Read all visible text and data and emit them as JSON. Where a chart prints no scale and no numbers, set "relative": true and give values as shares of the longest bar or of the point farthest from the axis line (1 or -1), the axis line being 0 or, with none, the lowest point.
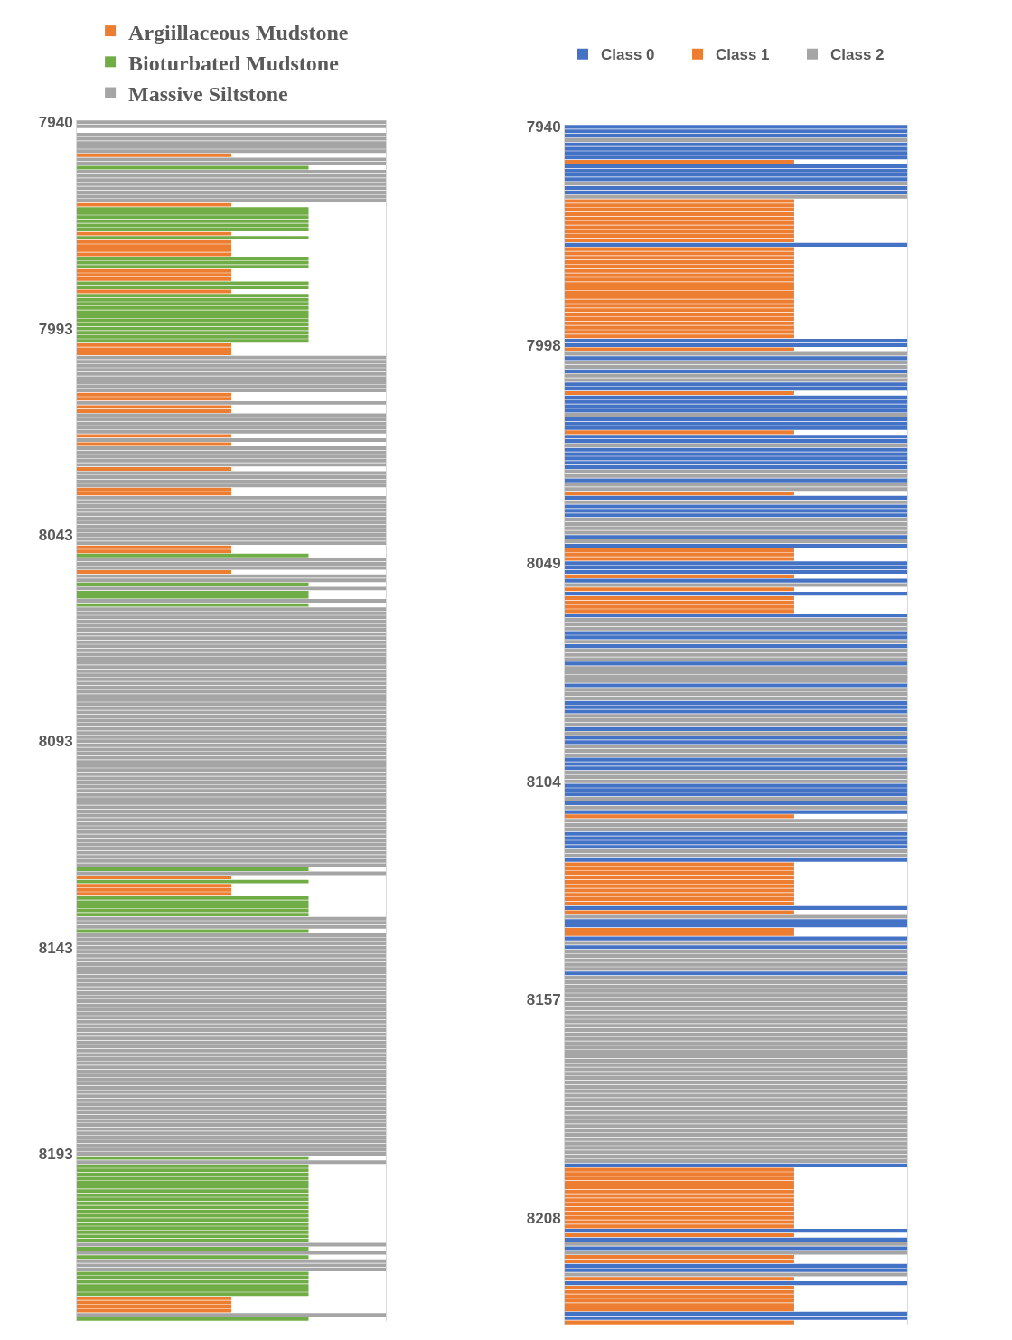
{
  "chart_data": [
    {
      "type": "bar",
      "orientation": "horizontal",
      "relative": true,
      "legend": "top left",
      "categories": [
        "7940",
        null,
        null,
        null,
        null,
        null,
        null,
        null,
        null,
        null,
        null,
        null,
        null,
        null,
        null,
        null,
        null,
        null,
        null,
        null,
        null,
        null,
        null,
        null,
        null,
        null,
        null,
        null,
        null,
        null,
        null,
        null,
        null,
        null,
        null,
        null,
        null,
        null,
        null,
        null,
        null,
        null,
        null,
        null,
        null,
        null,
        null,
        null,
        null,
        null,
        "7993",
        null,
        null,
        null,
        null,
        null,
        null,
        null,
        null,
        null,
        null,
        null,
        null,
        null,
        null,
        null,
        null,
        null,
        null,
        null,
        null,
        null,
        null,
        null,
        null,
        null,
        null,
        null,
        null,
        null,
        null,
        null,
        null,
        null,
        null,
        null,
        null,
        null,
        null,
        null,
        null,
        null,
        null,
        null,
        null,
        null,
        null,
        null,
        null,
        null,
        "8043",
        null,
        null,
        null,
        null,
        null,
        null,
        null,
        null,
        null,
        null,
        null,
        null,
        null,
        null,
        null,
        null,
        null,
        null,
        null,
        null,
        null,
        null,
        null,
        null,
        null,
        null,
        null,
        null,
        null,
        null,
        null,
        null,
        null,
        null,
        null,
        null,
        null,
        null,
        null,
        null,
        null,
        null,
        null,
        null,
        null,
        null,
        null,
        null,
        null,
        "8093",
        null,
        null,
        null,
        null,
        null,
        null,
        null,
        null,
        null,
        null,
        null,
        null,
        null,
        null,
        null,
        null,
        null,
        null,
        null,
        null,
        null,
        null,
        null,
        null,
        null,
        null,
        null,
        null,
        null,
        null,
        null,
        null,
        null,
        null,
        null,
        null,
        null,
        null,
        null,
        null,
        null,
        null,
        null,
        null,
        null,
        null,
        null,
        null,
        null,
        "8143",
        null,
        null,
        null,
        null,
        null,
        null,
        null,
        null,
        null,
        null,
        null,
        null,
        null,
        null,
        null,
        null,
        null,
        null,
        null,
        null,
        null,
        null,
        null,
        null,
        null,
        null,
        null,
        null,
        null,
        null,
        null,
        null,
        null,
        null,
        null,
        null,
        null,
        null,
        null,
        null,
        null,
        null,
        null,
        null,
        null,
        null,
        null,
        null,
        null,
        "8193",
        null,
        null,
        null,
        null,
        null,
        null,
        null,
        null,
        null,
        null,
        null,
        null,
        null,
        null,
        null,
        null,
        null,
        null,
        null,
        null,
        null,
        null,
        null,
        null,
        null,
        null,
        null,
        null,
        null,
        null,
        null,
        null,
        null,
        null,
        null,
        null,
        null,
        null,
        null,
        null
      ],
      "series": [
        {
          "name": "Argiillaceous Mudstone",
          "color": "#ed7d31",
          "values": [
            null,
            null,
            null,
            null,
            null,
            null,
            null,
            null,
            0.5,
            null,
            null,
            null,
            null,
            null,
            null,
            null,
            null,
            null,
            null,
            null,
            0.5,
            null,
            null,
            null,
            null,
            null,
            null,
            0.5,
            null,
            0.5,
            0.5,
            0.5,
            0.5,
            null,
            null,
            null,
            0.5,
            0.5,
            0.5,
            null,
            null,
            0.5,
            null,
            null,
            null,
            null,
            null,
            null,
            null,
            null,
            null,
            null,
            null,
            null,
            0.5,
            0.5,
            0.5,
            null,
            null,
            null,
            null,
            null,
            null,
            null,
            null,
            null,
            0.5,
            0.5,
            null,
            0.5,
            0.5,
            null,
            null,
            null,
            null,
            null,
            0.5,
            null,
            0.5,
            null,
            null,
            null,
            null,
            null,
            0.5,
            null,
            null,
            null,
            null,
            0.5,
            0.5,
            null,
            null,
            null,
            null,
            null,
            null,
            null,
            null,
            null,
            null,
            null,
            null,
            0.5,
            0.5,
            null,
            null,
            null,
            null,
            0.5,
            null,
            null,
            null,
            null,
            null,
            null,
            null,
            null,
            null,
            null,
            null,
            null,
            null,
            null,
            null,
            null,
            null,
            null,
            null,
            null,
            null,
            null,
            null,
            null,
            null,
            null,
            null,
            null,
            null,
            null,
            null,
            null,
            null,
            null,
            null,
            null,
            null,
            null,
            null,
            null,
            null,
            null,
            null,
            null,
            null,
            null,
            null,
            null,
            null,
            null,
            null,
            null,
            null,
            null,
            null,
            null,
            null,
            null,
            null,
            null,
            null,
            null,
            null,
            null,
            null,
            null,
            null,
            null,
            null,
            null,
            null,
            null,
            null,
            0.5,
            null,
            0.5,
            0.5,
            0.5,
            null,
            null,
            null,
            null,
            null,
            null,
            null,
            null,
            null,
            null,
            null,
            null,
            null,
            null,
            null,
            null,
            null,
            null,
            null,
            null,
            null,
            null,
            null,
            null,
            null,
            null,
            null,
            null,
            null,
            null,
            null,
            null,
            null,
            null,
            null,
            null,
            null,
            null,
            null,
            null,
            null,
            null,
            null,
            null,
            null,
            null,
            null,
            null,
            null,
            null,
            null,
            null,
            null,
            null,
            null,
            null,
            null,
            null,
            null,
            null,
            null,
            null,
            null,
            null,
            null,
            null,
            null,
            null,
            null,
            null,
            null,
            null,
            null,
            null,
            null,
            null,
            null,
            null,
            null,
            null,
            null,
            null,
            null,
            null,
            null,
            null,
            null,
            null,
            null,
            null,
            null,
            null,
            null,
            null,
            null,
            null,
            null,
            0.5,
            0.5,
            0.5,
            0.5,
            null,
            null
          ]
        },
        {
          "name": "Bioturbated Mudstone",
          "color": "#70ad47",
          "values": [
            null,
            null,
            null,
            null,
            null,
            null,
            null,
            null,
            null,
            null,
            null,
            0.75,
            null,
            null,
            null,
            null,
            null,
            null,
            null,
            null,
            null,
            0.75,
            0.75,
            0.75,
            0.75,
            0.75,
            0.75,
            null,
            0.75,
            null,
            null,
            null,
            null,
            0.75,
            0.75,
            0.75,
            null,
            null,
            null,
            0.75,
            0.75,
            null,
            0.75,
            0.75,
            0.75,
            0.75,
            0.75,
            0.75,
            0.75,
            0.75,
            0.75,
            0.75,
            0.75,
            0.75,
            null,
            null,
            null,
            null,
            null,
            null,
            null,
            null,
            null,
            null,
            null,
            null,
            null,
            null,
            null,
            null,
            null,
            null,
            null,
            null,
            null,
            null,
            null,
            null,
            null,
            null,
            null,
            null,
            null,
            null,
            null,
            null,
            null,
            null,
            null,
            null,
            null,
            null,
            null,
            null,
            null,
            null,
            null,
            null,
            null,
            null,
            null,
            null,
            null,
            null,
            null,
            0.75,
            null,
            null,
            null,
            null,
            null,
            null,
            0.75,
            null,
            0.75,
            0.75,
            null,
            0.75,
            null,
            null,
            null,
            null,
            null,
            null,
            null,
            null,
            null,
            null,
            null,
            null,
            null,
            null,
            null,
            null,
            null,
            null,
            null,
            null,
            null,
            null,
            null,
            null,
            null,
            null,
            null,
            null,
            null,
            null,
            null,
            null,
            null,
            null,
            null,
            null,
            null,
            null,
            null,
            null,
            null,
            null,
            null,
            null,
            null,
            null,
            null,
            null,
            null,
            null,
            null,
            null,
            null,
            null,
            null,
            null,
            null,
            null,
            null,
            null,
            null,
            null,
            null,
            0.75,
            null,
            null,
            0.75,
            null,
            null,
            null,
            0.75,
            0.75,
            0.75,
            0.75,
            0.75,
            null,
            null,
            null,
            0.75,
            null,
            null,
            null,
            null,
            null,
            null,
            null,
            null,
            null,
            null,
            null,
            null,
            null,
            null,
            null,
            null,
            null,
            null,
            null,
            null,
            null,
            null,
            null,
            null,
            null,
            null,
            null,
            null,
            null,
            null,
            null,
            null,
            null,
            null,
            null,
            null,
            null,
            null,
            null,
            null,
            null,
            null,
            null,
            null,
            null,
            null,
            null,
            null,
            null,
            null,
            null,
            null,
            null,
            null,
            0.75,
            null,
            0.75,
            0.75,
            0.75,
            0.75,
            0.75,
            0.75,
            0.75,
            0.75,
            0.75,
            0.75,
            0.75,
            0.75,
            0.75,
            0.75,
            0.75,
            0.75,
            0.75,
            0.75,
            0.75,
            null,
            0.75,
            null,
            0.75,
            null,
            null,
            null,
            0.75,
            0.75,
            0.75,
            0.75,
            0.75,
            0.75,
            null,
            null,
            null,
            null,
            null,
            0.75
          ]
        },
        {
          "name": "Massive Siltstone",
          "color": "#a5a5a5",
          "values": [
            1,
            1,
            null,
            1,
            1,
            1,
            1,
            1,
            null,
            1,
            1,
            null,
            1,
            1,
            1,
            1,
            1,
            1,
            1,
            1,
            null,
            null,
            null,
            null,
            null,
            null,
            null,
            null,
            null,
            null,
            null,
            null,
            null,
            null,
            null,
            null,
            null,
            null,
            null,
            null,
            null,
            null,
            null,
            null,
            null,
            null,
            null,
            null,
            null,
            null,
            null,
            null,
            null,
            null,
            null,
            null,
            null,
            1,
            1,
            1,
            1,
            1,
            1,
            1,
            1,
            1,
            null,
            null,
            1,
            null,
            null,
            1,
            1,
            1,
            1,
            1,
            null,
            1,
            null,
            1,
            1,
            1,
            1,
            1,
            null,
            1,
            1,
            1,
            1,
            null,
            null,
            1,
            1,
            1,
            1,
            1,
            1,
            1,
            1,
            1,
            1,
            1,
            1,
            null,
            null,
            null,
            1,
            1,
            1,
            null,
            1,
            1,
            null,
            1,
            null,
            null,
            1,
            null,
            1,
            1,
            1,
            1,
            1,
            1,
            1,
            1,
            1,
            1,
            1,
            1,
            1,
            1,
            1,
            1,
            1,
            1,
            1,
            1,
            1,
            1,
            1,
            1,
            1,
            1,
            1,
            1,
            1,
            1,
            1,
            1,
            1,
            1,
            1,
            1,
            1,
            1,
            1,
            1,
            1,
            1,
            1,
            1,
            1,
            1,
            1,
            1,
            1,
            1,
            1,
            1,
            1,
            1,
            1,
            1,
            1,
            1,
            1,
            1,
            1,
            1,
            1,
            null,
            1,
            null,
            null,
            null,
            null,
            null,
            null,
            null,
            null,
            null,
            null,
            1,
            1,
            1,
            null,
            1,
            1,
            1,
            1,
            1,
            1,
            1,
            1,
            1,
            1,
            1,
            1,
            1,
            1,
            1,
            1,
            1,
            1,
            1,
            1,
            1,
            1,
            1,
            1,
            1,
            1,
            1,
            1,
            1,
            1,
            1,
            1,
            1,
            1,
            1,
            1,
            1,
            1,
            1,
            1,
            1,
            1,
            1,
            1,
            1,
            1,
            1,
            1,
            1,
            1,
            1,
            1,
            1,
            1,
            null,
            1,
            null,
            null,
            null,
            null,
            null,
            null,
            null,
            null,
            null,
            null,
            null,
            null,
            null,
            null,
            null,
            null,
            null,
            null,
            null,
            1,
            null,
            1,
            null,
            1,
            1,
            1,
            null,
            null,
            null,
            null,
            null,
            null,
            null,
            null,
            null,
            null,
            1,
            null
          ]
        }
      ]
    },
    {
      "type": "bar",
      "orientation": "horizontal",
      "relative": true,
      "legend": "top",
      "categories": [
        "7940",
        null,
        null,
        null,
        null,
        null,
        null,
        null,
        null,
        null,
        null,
        null,
        null,
        null,
        null,
        null,
        null,
        null,
        null,
        null,
        null,
        null,
        null,
        null,
        null,
        null,
        null,
        null,
        null,
        null,
        null,
        null,
        null,
        null,
        null,
        null,
        null,
        null,
        null,
        null,
        null,
        null,
        null,
        null,
        null,
        null,
        null,
        null,
        null,
        null,
        "7998",
        null,
        null,
        null,
        null,
        null,
        null,
        null,
        null,
        null,
        null,
        null,
        null,
        null,
        null,
        null,
        null,
        null,
        null,
        null,
        null,
        null,
        null,
        null,
        null,
        null,
        null,
        null,
        null,
        null,
        null,
        null,
        null,
        null,
        null,
        null,
        null,
        null,
        null,
        null,
        null,
        null,
        null,
        null,
        null,
        null,
        null,
        null,
        null,
        null,
        "8049",
        null,
        null,
        null,
        null,
        null,
        null,
        null,
        null,
        null,
        null,
        null,
        null,
        null,
        null,
        null,
        null,
        null,
        null,
        null,
        null,
        null,
        null,
        null,
        null,
        null,
        null,
        null,
        null,
        null,
        null,
        null,
        null,
        null,
        null,
        null,
        null,
        null,
        null,
        null,
        null,
        null,
        null,
        null,
        null,
        null,
        null,
        null,
        null,
        null,
        "8104",
        null,
        null,
        null,
        null,
        null,
        null,
        null,
        null,
        null,
        null,
        null,
        null,
        null,
        null,
        null,
        null,
        null,
        null,
        null,
        null,
        null,
        null,
        null,
        null,
        null,
        null,
        null,
        null,
        null,
        null,
        null,
        null,
        null,
        null,
        null,
        null,
        null,
        null,
        null,
        null,
        null,
        null,
        null,
        null,
        null,
        null,
        null,
        null,
        null,
        "8157",
        null,
        null,
        null,
        null,
        null,
        null,
        null,
        null,
        null,
        null,
        null,
        null,
        null,
        null,
        null,
        null,
        null,
        null,
        null,
        null,
        null,
        null,
        null,
        null,
        null,
        null,
        null,
        null,
        null,
        null,
        null,
        null,
        null,
        null,
        null,
        null,
        null,
        null,
        null,
        null,
        null,
        null,
        null,
        null,
        null,
        null,
        null,
        null,
        null,
        "8208",
        null,
        null,
        null,
        null,
        null,
        null,
        null,
        null,
        null,
        null,
        null,
        null,
        null,
        null,
        null,
        null,
        null,
        null,
        null,
        null,
        null,
        null,
        null,
        null
      ],
      "series": [
        {
          "name": "Class 0",
          "color": "#4472c4",
          "values": [
            1,
            1,
            1,
            null,
            1,
            1,
            1,
            1,
            null,
            1,
            1,
            1,
            1,
            null,
            1,
            1,
            null,
            null,
            null,
            null,
            null,
            null,
            null,
            null,
            null,
            null,
            null,
            1,
            null,
            null,
            null,
            null,
            null,
            null,
            null,
            null,
            null,
            null,
            null,
            null,
            null,
            null,
            null,
            null,
            null,
            null,
            null,
            null,
            null,
            1,
            1,
            null,
            null,
            1,
            null,
            null,
            1,
            null,
            null,
            1,
            1,
            null,
            1,
            1,
            1,
            1,
            null,
            1,
            1,
            1,
            null,
            1,
            1,
            null,
            1,
            1,
            1,
            1,
            1,
            null,
            null,
            1,
            null,
            null,
            null,
            1,
            null,
            1,
            1,
            1,
            null,
            null,
            null,
            null,
            1,
            null,
            1,
            null,
            null,
            null,
            1,
            1,
            1,
            null,
            1,
            null,
            null,
            1,
            null,
            null,
            null,
            null,
            1,
            null,
            null,
            null,
            1,
            1,
            null,
            1,
            null,
            null,
            null,
            1,
            null,
            null,
            null,
            null,
            1,
            null,
            null,
            null,
            1,
            1,
            1,
            null,
            null,
            null,
            1,
            null,
            1,
            1,
            null,
            null,
            null,
            1,
            1,
            1,
            null,
            null,
            null,
            1,
            1,
            1,
            null,
            1,
            null,
            1,
            null,
            null,
            null,
            null,
            1,
            1,
            1,
            1,
            null,
            null,
            1,
            null,
            null,
            null,
            null,
            null,
            null,
            null,
            null,
            null,
            null,
            1,
            null,
            null,
            1,
            1,
            null,
            null,
            1,
            null,
            1,
            null,
            null,
            null,
            null,
            null,
            1,
            null,
            null,
            null,
            null,
            null,
            null,
            null,
            null,
            null,
            null,
            null,
            null,
            null,
            null,
            null,
            null,
            null,
            null,
            null,
            null,
            null,
            null,
            null,
            null,
            null,
            null,
            null,
            null,
            null,
            null,
            null,
            null,
            null,
            null,
            null,
            null,
            null,
            null,
            null,
            null,
            null,
            null,
            null,
            1,
            null,
            null,
            null,
            null,
            null,
            null,
            null,
            null,
            null,
            null,
            null,
            null,
            null,
            null,
            1,
            null,
            1,
            null,
            1,
            null,
            null,
            null,
            1,
            1,
            null,
            null,
            1,
            null,
            null,
            null,
            null,
            null,
            null,
            1,
            1,
            null
          ]
        },
        {
          "name": "Class 1",
          "color": "#ed7d31",
          "values": [
            null,
            null,
            null,
            null,
            null,
            null,
            null,
            null,
            0.67,
            null,
            null,
            null,
            null,
            null,
            null,
            null,
            null,
            0.67,
            0.67,
            0.67,
            0.67,
            0.67,
            0.67,
            0.67,
            0.67,
            0.67,
            0.67,
            null,
            0.67,
            0.67,
            0.67,
            0.67,
            0.67,
            0.67,
            0.67,
            0.67,
            0.67,
            0.67,
            0.67,
            0.67,
            0.67,
            0.67,
            0.67,
            0.67,
            0.67,
            0.67,
            0.67,
            0.67,
            0.67,
            null,
            null,
            0.67,
            null,
            null,
            null,
            null,
            null,
            null,
            null,
            null,
            null,
            0.67,
            null,
            null,
            null,
            null,
            null,
            null,
            null,
            null,
            0.67,
            null,
            null,
            null,
            null,
            null,
            null,
            null,
            null,
            null,
            null,
            null,
            null,
            null,
            0.67,
            null,
            null,
            null,
            null,
            null,
            null,
            null,
            null,
            null,
            null,
            null,
            null,
            0.67,
            0.67,
            0.67,
            null,
            null,
            null,
            0.67,
            null,
            null,
            0.67,
            null,
            0.67,
            0.67,
            0.67,
            0.67,
            null,
            null,
            null,
            null,
            null,
            null,
            null,
            null,
            null,
            null,
            null,
            null,
            null,
            null,
            null,
            null,
            null,
            null,
            null,
            null,
            null,
            null,
            null,
            null,
            null,
            null,
            null,
            null,
            null,
            null,
            null,
            null,
            null,
            null,
            null,
            null,
            null,
            null,
            null,
            null,
            null,
            null,
            null,
            null,
            null,
            null,
            0.67,
            null,
            null,
            null,
            null,
            null,
            null,
            null,
            null,
            null,
            null,
            0.67,
            0.67,
            0.67,
            0.67,
            0.67,
            0.67,
            0.67,
            0.67,
            0.67,
            0.67,
            null,
            0.67,
            null,
            null,
            null,
            0.67,
            0.67,
            null,
            null,
            null,
            null,
            null,
            null,
            null,
            null,
            null,
            null,
            null,
            null,
            null,
            null,
            null,
            null,
            null,
            null,
            null,
            null,
            null,
            null,
            null,
            null,
            null,
            null,
            null,
            null,
            null,
            null,
            null,
            null,
            null,
            null,
            null,
            null,
            null,
            null,
            null,
            null,
            null,
            null,
            null,
            null,
            null,
            null,
            null,
            null,
            null,
            null,
            null,
            null,
            null,
            0.67,
            0.67,
            0.67,
            0.67,
            0.67,
            0.67,
            0.67,
            0.67,
            0.67,
            0.67,
            0.67,
            0.67,
            0.67,
            0.67,
            null,
            0.67,
            null,
            null,
            null,
            null,
            0.67,
            0.67,
            null,
            null,
            null,
            0.67,
            null,
            0.67,
            0.67,
            0.67,
            0.67,
            0.67,
            0.67,
            null,
            null,
            0.67
          ]
        },
        {
          "name": "Class 2",
          "color": "#a5a5a5",
          "values": [
            null,
            null,
            null,
            1,
            null,
            null,
            null,
            null,
            null,
            null,
            null,
            null,
            null,
            1,
            null,
            null,
            1,
            null,
            null,
            null,
            null,
            null,
            null,
            null,
            null,
            null,
            null,
            null,
            null,
            null,
            null,
            null,
            null,
            null,
            null,
            null,
            null,
            null,
            null,
            null,
            null,
            null,
            null,
            null,
            null,
            null,
            null,
            null,
            null,
            null,
            null,
            null,
            1,
            null,
            1,
            1,
            null,
            1,
            1,
            null,
            null,
            null,
            null,
            null,
            null,
            null,
            1,
            null,
            null,
            null,
            null,
            null,
            null,
            1,
            null,
            null,
            null,
            null,
            null,
            1,
            1,
            null,
            1,
            1,
            null,
            null,
            1,
            null,
            null,
            null,
            1,
            1,
            1,
            1,
            null,
            1,
            null,
            null,
            null,
            null,
            null,
            null,
            null,
            null,
            null,
            1,
            null,
            null,
            null,
            null,
            null,
            null,
            null,
            1,
            1,
            1,
            null,
            null,
            1,
            null,
            1,
            1,
            1,
            null,
            1,
            1,
            1,
            1,
            null,
            1,
            1,
            1,
            null,
            null,
            null,
            1,
            1,
            1,
            null,
            1,
            null,
            null,
            1,
            1,
            1,
            null,
            null,
            null,
            1,
            1,
            1,
            null,
            null,
            null,
            1,
            null,
            1,
            null,
            null,
            1,
            1,
            1,
            null,
            null,
            null,
            null,
            1,
            1,
            null,
            null,
            null,
            null,
            null,
            null,
            null,
            null,
            null,
            null,
            null,
            null,
            null,
            1,
            null,
            null,
            null,
            null,
            null,
            1,
            null,
            1,
            1,
            1,
            1,
            1,
            null,
            1,
            1,
            1,
            1,
            1,
            1,
            1,
            1,
            1,
            1,
            1,
            1,
            1,
            1,
            1,
            1,
            1,
            1,
            1,
            1,
            1,
            1,
            1,
            1,
            1,
            1,
            1,
            1,
            1,
            1,
            1,
            1,
            1,
            1,
            1,
            1,
            1,
            1,
            1,
            1,
            1,
            1,
            1,
            null,
            null,
            null,
            null,
            null,
            null,
            null,
            null,
            null,
            null,
            null,
            null,
            null,
            null,
            null,
            null,
            null,
            null,
            1,
            null,
            1,
            null,
            null,
            null,
            null,
            1,
            null,
            null,
            null,
            null,
            null,
            null,
            null,
            null,
            null,
            null,
            null
          ]
        }
      ]
    }
  ]
}
